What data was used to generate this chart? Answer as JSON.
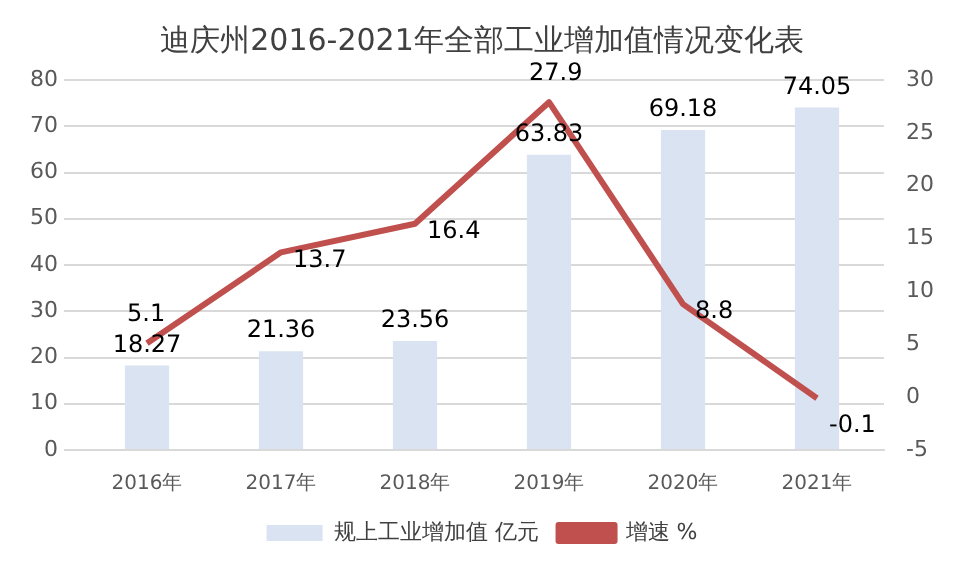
{
  "chart_data": {
    "type": "bar",
    "title": "迪庆州2016-2021年全部工业增加值情况变化表",
    "categories": [
      "2016年",
      "2017年",
      "2018年",
      "2019年",
      "2020年",
      "2021年"
    ],
    "series": [
      {
        "name": "规上工业增加值 亿元",
        "color": "#dae3f1",
        "values": [
          18.27,
          21.36,
          23.56,
          63.83,
          69.18,
          74.05
        ]
      },
      {
        "name": "增速 %",
        "type": "line",
        "axis": "y2",
        "color": "#c0504d",
        "values": [
          5.1,
          13.7,
          16.4,
          27.9,
          8.8,
          -0.1
        ]
      }
    ],
    "ylim": [
      0,
      80
    ],
    "yticks": [
      0,
      10,
      20,
      30,
      40,
      50,
      60,
      70,
      80
    ],
    "y2lim": [
      -5,
      30
    ],
    "y2ticks": [
      -5,
      0,
      5,
      10,
      15,
      20,
      25,
      30
    ],
    "grid": "y",
    "legend": "bottom",
    "data_labels": true,
    "marker": "none"
  }
}
